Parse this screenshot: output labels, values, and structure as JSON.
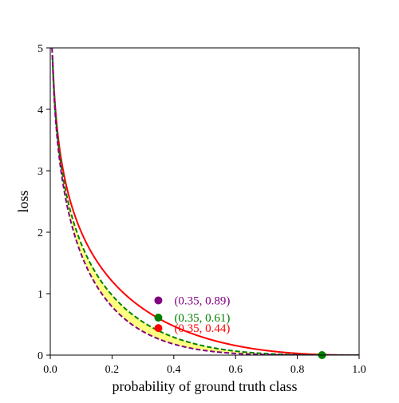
{
  "chart_data": {
    "type": "line",
    "title": "",
    "xlabel": "probability of ground truth class",
    "ylabel": "loss",
    "xlim": [
      0.0,
      1.0
    ],
    "ylim": [
      0,
      5
    ],
    "xticks": [
      "0.0",
      "0.2",
      "0.4",
      "0.6",
      "0.8",
      "1.0"
    ],
    "yticks": [
      "0",
      "1",
      "2",
      "3",
      "4",
      "5"
    ],
    "grid": false,
    "legend": "none",
    "series": [
      {
        "key": "red",
        "style": "solid",
        "color": "#ff0000",
        "gamma": 1.3
      },
      {
        "key": "green",
        "style": "dashed",
        "color": "#008000",
        "gamma": 2.25
      },
      {
        "key": "purple",
        "style": "dashed",
        "color": "#800080",
        "gamma": 3.2
      }
    ],
    "shaded_band": {
      "between": [
        "green",
        "purple"
      ],
      "color": "#ffff80"
    },
    "points": [
      {
        "x": 0.35,
        "y": 0.89,
        "color": "#800080",
        "label": "(0.35, 0.89)"
      },
      {
        "x": 0.35,
        "y": 0.61,
        "color": "#008000",
        "label": "(0.35, 0.61)"
      },
      {
        "x": 0.35,
        "y": 0.44,
        "color": "#ff0000",
        "label": "(0.35, 0.44)"
      },
      {
        "x": 0.88,
        "y": 0.0,
        "color": "#008000",
        "label": ""
      }
    ]
  }
}
